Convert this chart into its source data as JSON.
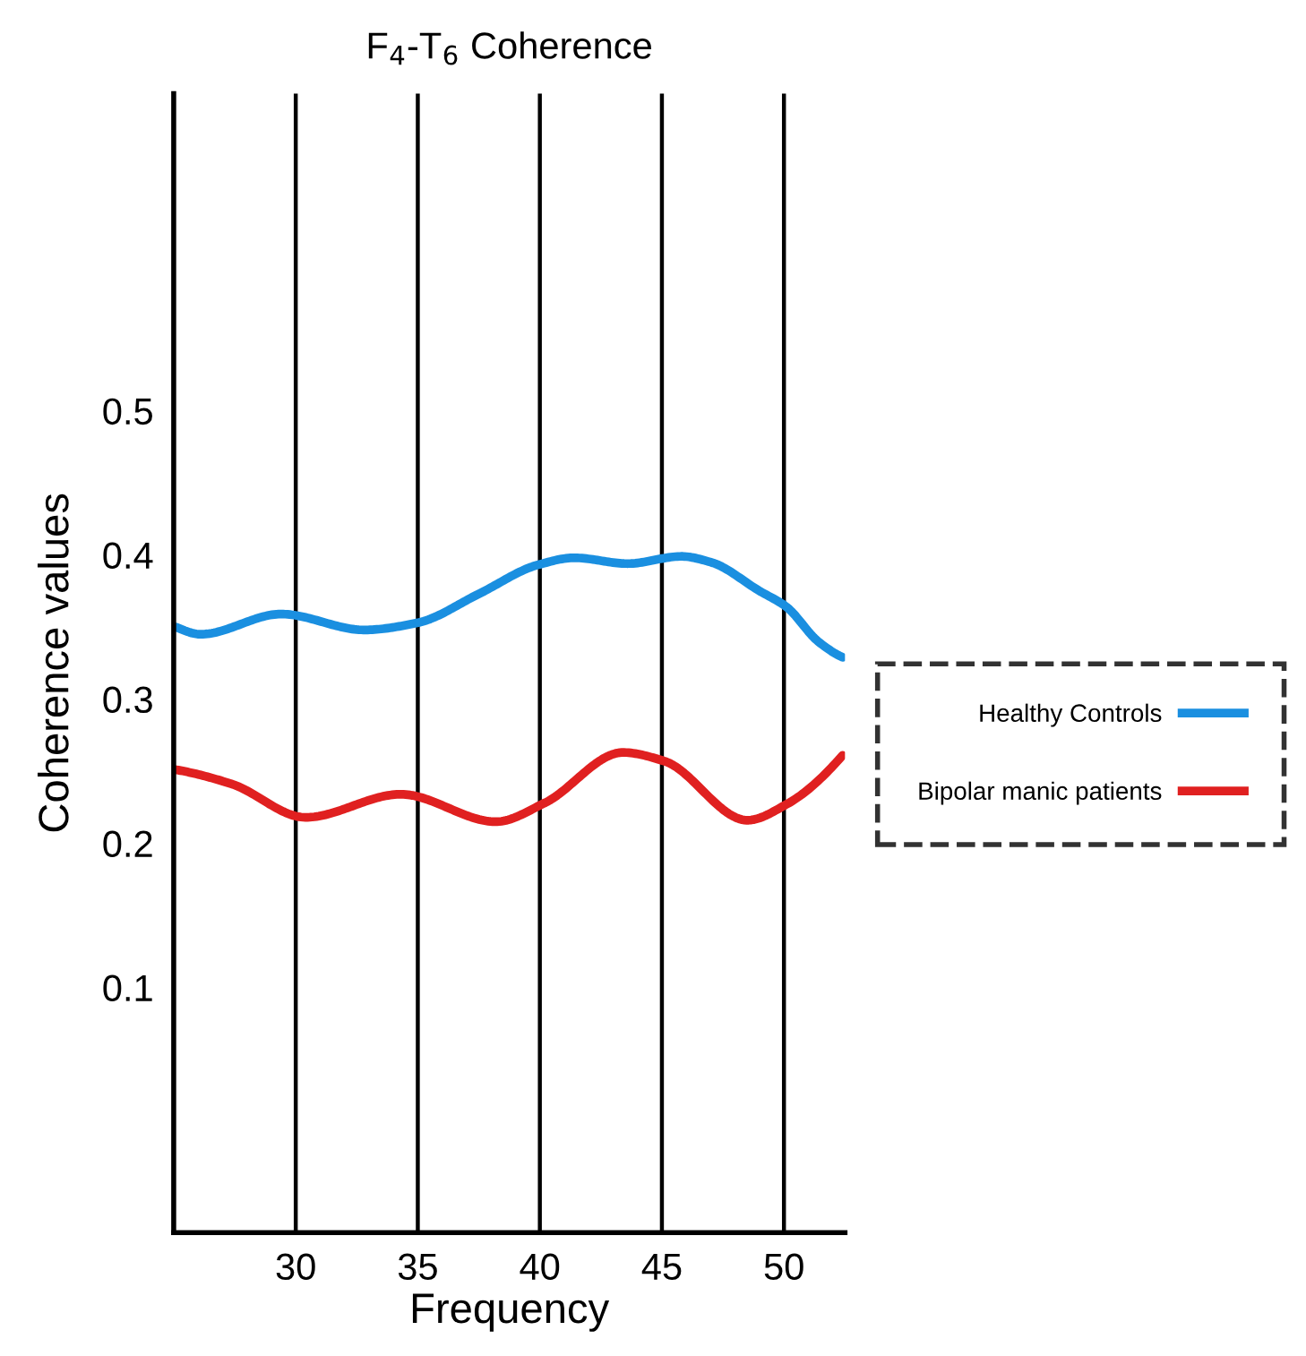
{
  "chart_data": {
    "type": "line",
    "title": "F$_{4}$-T$_{6}$ Coherence",
    "xlabel": "Frequency",
    "ylabel": "Coherence values",
    "xlim": [
      25,
      52.5
    ],
    "xticks": [
      30,
      35,
      40,
      45,
      50
    ],
    "ylim": [
      -0.07,
      0.72
    ],
    "yticks": [
      0.1,
      0.2,
      0.3,
      0.4,
      0.5
    ],
    "grid": "x",
    "legend": "right",
    "line_style": "solid",
    "marker": "none",
    "series": [
      {
        "name": "Healthy Controls",
        "color": "#1a8fe0",
        "x": [
          25.1,
          26.1,
          29.4,
          32.8,
          35.0,
          37.5,
          39.9,
          41.4,
          43.6,
          45.8,
          47.0,
          49.0,
          50.1,
          51.4,
          52.4
        ],
        "values": [
          0.35,
          0.345,
          0.359,
          0.348,
          0.353,
          0.373,
          0.393,
          0.398,
          0.394,
          0.399,
          0.395,
          0.375,
          0.364,
          0.34,
          0.329
        ]
      },
      {
        "name": "Bipolar manic patients",
        "color": "#e02020",
        "x": [
          25.1,
          27.4,
          30.4,
          34.3,
          38.2,
          40.2,
          43.4,
          45.1,
          48.5,
          50.1,
          52.4
        ],
        "values": [
          0.251,
          0.241,
          0.218,
          0.234,
          0.215,
          0.228,
          0.263,
          0.257,
          0.216,
          0.227,
          0.261
        ]
      }
    ]
  }
}
